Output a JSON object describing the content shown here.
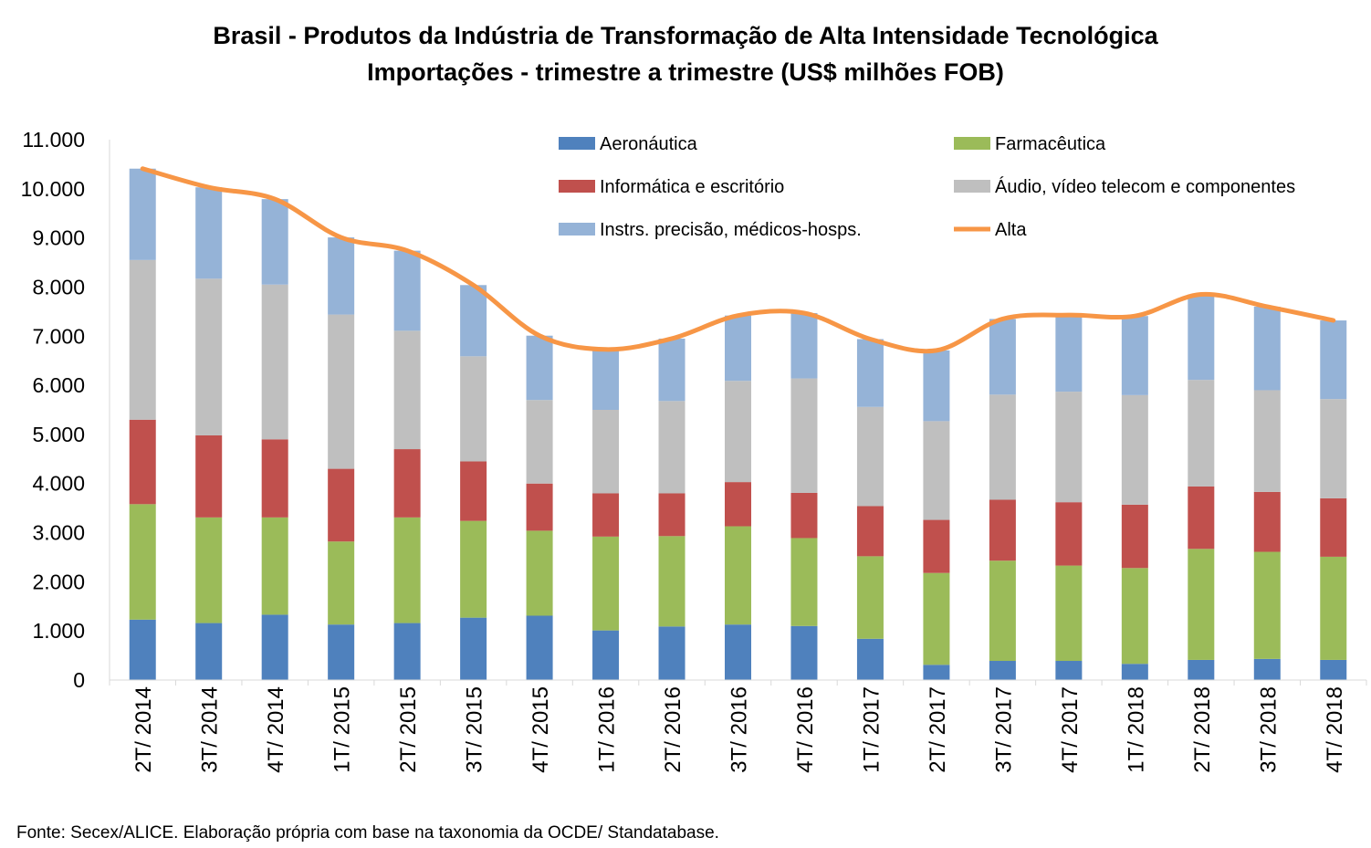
{
  "chart_data": {
    "type": "bar",
    "stacked": true,
    "title": "Brasil - Produtos da Indústria de Transformação de Alta Intensidade Tecnológica",
    "subtitle": "Importações - trimestre a trimestre (US$ milhões FOB)",
    "ylim": [
      0,
      11000
    ],
    "yticks": [
      "0",
      "1.000",
      "2.000",
      "3.000",
      "4.000",
      "5.000",
      "6.000",
      "7.000",
      "8.000",
      "9.000",
      "10.000",
      "11.000"
    ],
    "ytick_values": [
      0,
      1000,
      2000,
      3000,
      4000,
      5000,
      6000,
      7000,
      8000,
      9000,
      10000,
      11000
    ],
    "grid": false,
    "legend_position": "top",
    "categories": [
      "2T/ 2014",
      "3T/ 2014",
      "4T/ 2014",
      "1T/ 2015",
      "2T/ 2015",
      "3T/ 2015",
      "4T/ 2015",
      "1T/ 2016",
      "2T/ 2016",
      "3T/ 2016",
      "4T/ 2016",
      "1T/ 2017",
      "2T/ 2017",
      "3T/ 2017",
      "4T/ 2017",
      "1T/ 2018",
      "2T/ 2018",
      "3T/ 2018",
      "4T/ 2018"
    ],
    "series": [
      {
        "name": "Aeronáutica",
        "color": "#4f81bd",
        "values": [
          1230,
          1160,
          1330,
          1130,
          1160,
          1270,
          1310,
          1010,
          1090,
          1130,
          1100,
          840,
          310,
          390,
          390,
          330,
          410,
          430,
          410
        ]
      },
      {
        "name": "Farmacêutica",
        "color": "#9bbb59",
        "values": [
          2350,
          2150,
          1980,
          1690,
          2150,
          1970,
          1730,
          1910,
          1840,
          2000,
          1790,
          1680,
          1870,
          2040,
          1940,
          1950,
          2260,
          2180,
          2100
        ]
      },
      {
        "name": "Informática e escritório",
        "color": "#c0504d",
        "values": [
          1720,
          1670,
          1590,
          1480,
          1390,
          1210,
          960,
          880,
          870,
          900,
          920,
          1020,
          1080,
          1240,
          1290,
          1290,
          1270,
          1220,
          1190
        ]
      },
      {
        "name": "Áudio, vídeo telecom e componentes",
        "color": "#bfbfbf",
        "values": [
          3250,
          3190,
          3150,
          3140,
          2410,
          2140,
          1700,
          1700,
          1880,
          2060,
          2330,
          2020,
          2010,
          2140,
          2250,
          2230,
          2170,
          2070,
          2020
        ]
      },
      {
        "name": "Instrs. precisão, médicos-hosps.",
        "color": "#95b3d7",
        "values": [
          1860,
          1860,
          1740,
          1570,
          1630,
          1450,
          1310,
          1230,
          1270,
          1330,
          1330,
          1380,
          1440,
          1540,
          1560,
          1610,
          1740,
          1700,
          1600
        ]
      },
      {
        "name": "Alta",
        "color": "#f79646",
        "kind": "line",
        "values": [
          10410,
          10030,
          9790,
          9010,
          8740,
          8040,
          7010,
          6730,
          6950,
          7420,
          7470,
          6940,
          6710,
          7350,
          7430,
          7410,
          7850,
          7600,
          7320
        ]
      }
    ]
  },
  "source_note": "Fonte: Secex/ALICE. Elaboração própria com base na taxonomia da OCDE/ Standatabase."
}
